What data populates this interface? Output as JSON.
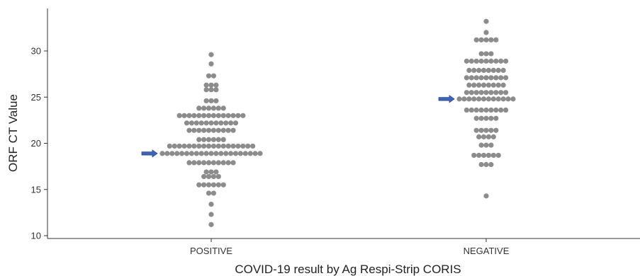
{
  "chart_data": {
    "type": "scatter",
    "subtype": "beeswarm",
    "xlabel": "COVID-19 result by Ag Respi-Strip CORIS",
    "ylabel": "ORF CT Value",
    "ylim": [
      10,
      34
    ],
    "yticks": [
      10,
      15,
      20,
      25,
      30
    ],
    "categories": [
      "POSITIVE",
      "NEGATIVE"
    ],
    "grid": false,
    "point_color": "#8c8c8c",
    "arrow_color": "#3f63b8",
    "series": [
      {
        "category": "POSITIVE",
        "bins": [
          {
            "y": 11.2,
            "count": 1
          },
          {
            "y": 12.3,
            "count": 1
          },
          {
            "y": 13.4,
            "count": 1
          },
          {
            "y": 14.6,
            "count": 2
          },
          {
            "y": 15.5,
            "count": 6
          },
          {
            "y": 16.4,
            "count": 4
          },
          {
            "y": 16.9,
            "count": 3
          },
          {
            "y": 17.9,
            "count": 10
          },
          {
            "y": 18.9,
            "count": 21
          },
          {
            "y": 19.7,
            "count": 18
          },
          {
            "y": 20.4,
            "count": 6
          },
          {
            "y": 21.4,
            "count": 10
          },
          {
            "y": 22.2,
            "count": 11
          },
          {
            "y": 23.0,
            "count": 14
          },
          {
            "y": 23.8,
            "count": 6
          },
          {
            "y": 24.6,
            "count": 3
          },
          {
            "y": 25.8,
            "count": 3
          },
          {
            "y": 26.3,
            "count": 3
          },
          {
            "y": 27.3,
            "count": 2
          },
          {
            "y": 28.6,
            "count": 1
          },
          {
            "y": 29.6,
            "count": 1
          }
        ],
        "arrow_at": 18.9
      },
      {
        "category": "NEGATIVE",
        "bins": [
          {
            "y": 14.3,
            "count": 1
          },
          {
            "y": 17.7,
            "count": 3
          },
          {
            "y": 18.7,
            "count": 6
          },
          {
            "y": 19.8,
            "count": 3
          },
          {
            "y": 20.7,
            "count": 4
          },
          {
            "y": 21.4,
            "count": 5
          },
          {
            "y": 22.7,
            "count": 5
          },
          {
            "y": 23.6,
            "count": 9
          },
          {
            "y": 24.8,
            "count": 12
          },
          {
            "y": 25.5,
            "count": 9
          },
          {
            "y": 26.3,
            "count": 8
          },
          {
            "y": 27.1,
            "count": 9
          },
          {
            "y": 27.9,
            "count": 8
          },
          {
            "y": 28.9,
            "count": 9
          },
          {
            "y": 29.7,
            "count": 3
          },
          {
            "y": 31.2,
            "count": 5
          },
          {
            "y": 32.0,
            "count": 1
          },
          {
            "y": 33.2,
            "count": 1
          }
        ],
        "arrow_at": 24.8
      }
    ]
  }
}
